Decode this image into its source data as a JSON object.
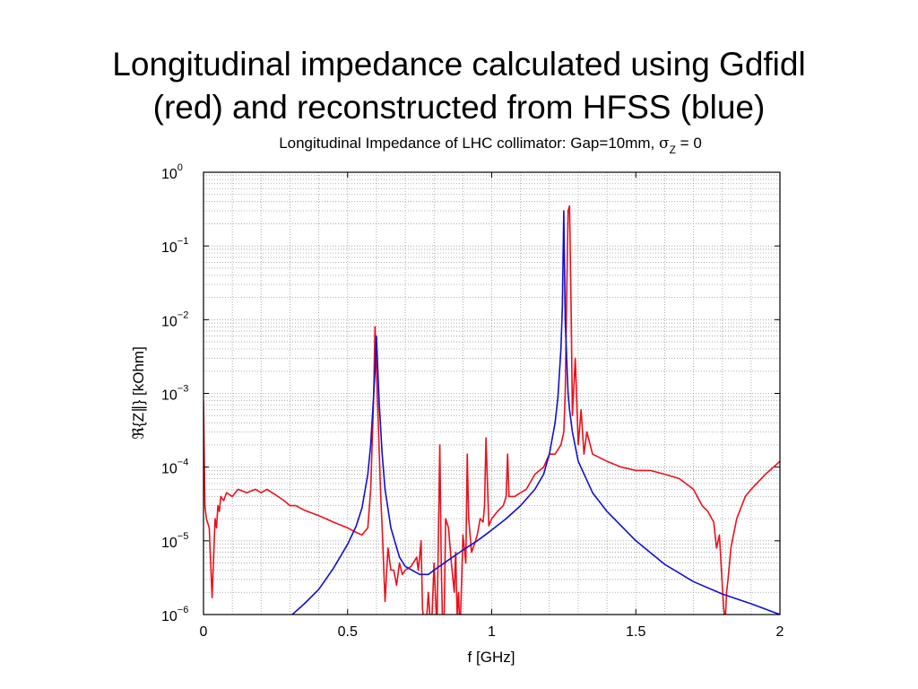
{
  "slide": {
    "title_line1": "Longitudinal impedance calculated using Gdfidl",
    "title_line2": "(red) and reconstructed from HFSS (blue)"
  },
  "chart_data": {
    "type": "line",
    "title": "Longitudinal Impedance of LHC collimator: Gap=10mm, σZ = 0",
    "title_main": "Longitudinal Impedance of LHC collimator: Gap=10mm, ",
    "title_sigma": "σ",
    "title_sub": "Z",
    "title_tail": " = 0",
    "xlabel": "f [GHz]",
    "ylabel": "ℜ{Z∥} [kOhm]",
    "xlim": [
      0,
      2
    ],
    "ylim_exponents": [
      -6,
      0
    ],
    "yscale": "log",
    "grid": true,
    "x_ticks": [
      {
        "value": 0,
        "label": "0"
      },
      {
        "value": 0.5,
        "label": "0.5"
      },
      {
        "value": 1,
        "label": "1"
      },
      {
        "value": 1.5,
        "label": "1.5"
      },
      {
        "value": 2,
        "label": "2"
      }
    ],
    "y_ticks": [
      {
        "exp": 0,
        "base": "10",
        "sup": "0"
      },
      {
        "exp": -1,
        "base": "10",
        "sup": "−1"
      },
      {
        "exp": -2,
        "base": "10",
        "sup": "−2"
      },
      {
        "exp": -3,
        "base": "10",
        "sup": "−3"
      },
      {
        "exp": -4,
        "base": "10",
        "sup": "−4"
      },
      {
        "exp": -5,
        "base": "10",
        "sup": "−5"
      },
      {
        "exp": -6,
        "base": "10",
        "sup": "−6"
      }
    ],
    "series": [
      {
        "color": "#e8111b",
        "x": [
          0.0,
          0.005,
          0.01,
          0.02,
          0.03,
          0.04,
          0.045,
          0.05,
          0.055,
          0.06,
          0.07,
          0.08,
          0.1,
          0.12,
          0.15,
          0.18,
          0.2,
          0.22,
          0.25,
          0.28,
          0.3,
          0.32,
          0.35,
          0.4,
          0.45,
          0.5,
          0.53,
          0.55,
          0.57,
          0.58,
          0.59,
          0.595,
          0.6,
          0.605,
          0.61,
          0.615,
          0.62,
          0.63,
          0.64,
          0.65,
          0.66,
          0.67,
          0.68,
          0.69,
          0.7,
          0.72,
          0.74,
          0.745,
          0.75,
          0.755,
          0.76,
          0.77,
          0.78,
          0.79,
          0.8,
          0.81,
          0.82,
          0.825,
          0.83,
          0.835,
          0.84,
          0.85,
          0.86,
          0.87,
          0.875,
          0.88,
          0.885,
          0.89,
          0.9,
          0.91,
          0.915,
          0.92,
          0.93,
          0.94,
          0.95,
          0.96,
          0.97,
          0.975,
          0.98,
          0.99,
          1.0,
          1.02,
          1.04,
          1.05,
          1.055,
          1.06,
          1.08,
          1.1,
          1.12,
          1.15,
          1.18,
          1.2,
          1.22,
          1.24,
          1.25,
          1.255,
          1.26,
          1.265,
          1.27,
          1.275,
          1.28,
          1.29,
          1.3,
          1.31,
          1.32,
          1.33,
          1.35,
          1.4,
          1.45,
          1.5,
          1.55,
          1.6,
          1.65,
          1.7,
          1.73,
          1.75,
          1.77,
          1.78,
          1.79,
          1.8,
          1.805,
          1.81,
          1.815,
          1.82,
          1.83,
          1.85,
          1.88,
          1.9,
          1.95,
          2.0
        ],
        "y": [
          0.0008,
          3e-05,
          2e-05,
          1.5e-05,
          1.7e-06,
          2e-05,
          1.5e-05,
          3e-05,
          2.5e-05,
          4e-05,
          3.5e-05,
          4.5e-05,
          4e-05,
          5e-05,
          4.5e-05,
          5e-05,
          4.5e-05,
          5e-05,
          4.2e-05,
          3.5e-05,
          3e-05,
          3e-05,
          2.6e-05,
          2.2e-05,
          1.8e-05,
          1.5e-05,
          1.3e-05,
          1.2e-05,
          1.5e-05,
          5e-05,
          0.0008,
          0.008,
          0.002,
          0.0006,
          0.00015,
          4e-05,
          1.5e-05,
          1.5e-06,
          8e-06,
          4e-06,
          4e-06,
          2.5e-06,
          5e-06,
          3.5e-06,
          4e-06,
          4.5e-06,
          6e-06,
          4e-06,
          6e-06,
          1e-05,
          1.2e-06,
          5e-07,
          2e-06,
          5e-07,
          5e-06,
          6e-07,
          0.0002,
          5e-06,
          6e-07,
          1e-06,
          2e-05,
          1.5e-05,
          5e-06,
          2e-06,
          7e-06,
          1e-06,
          2e-06,
          5e-07,
          1.2e-05,
          5e-06,
          0.00015,
          2e-05,
          7e-06,
          9e-06,
          1.2e-05,
          2e-05,
          1.8e-05,
          3e-05,
          0.00025,
          1.6e-05,
          2e-05,
          2.5e-05,
          3e-05,
          4e-05,
          0.00015,
          4e-05,
          4e-05,
          4.5e-05,
          5e-05,
          8e-05,
          0.0001,
          0.00015,
          0.00015,
          0.0002,
          0.0003,
          0.001,
          0.02,
          0.3,
          0.35,
          0.02,
          0.0005,
          0.003,
          0.0002,
          0.0006,
          0.00015,
          0.0003,
          0.00015,
          0.00012,
          0.0001,
          9e-05,
          9e-05,
          8e-05,
          7e-05,
          5e-05,
          3e-05,
          2.5e-05,
          1.8e-05,
          8e-06,
          1.2e-05,
          2.5e-06,
          1.2e-06,
          8e-07,
          2e-06,
          3e-06,
          8e-06,
          2e-05,
          4e-05,
          5e-05,
          8e-05,
          0.00012
        ]
      },
      {
        "color": "#1010d0",
        "x": [
          0.28,
          0.35,
          0.4,
          0.45,
          0.5,
          0.53,
          0.55,
          0.57,
          0.58,
          0.59,
          0.595,
          0.6,
          0.605,
          0.61,
          0.62,
          0.63,
          0.65,
          0.68,
          0.7,
          0.75,
          0.78,
          0.8,
          0.85,
          0.9,
          0.95,
          1.0,
          1.05,
          1.1,
          1.15,
          1.18,
          1.2,
          1.22,
          1.23,
          1.24,
          1.245,
          1.25,
          1.255,
          1.26,
          1.265,
          1.27,
          1.28,
          1.3,
          1.35,
          1.4,
          1.5,
          1.6,
          1.7,
          1.8,
          1.9,
          2.0
        ],
        "y": [
          8e-07,
          1.4e-06,
          2.2e-06,
          4.2e-06,
          9e-06,
          1.6e-05,
          2.8e-05,
          8e-05,
          0.0002,
          0.0009,
          0.002,
          0.006,
          0.002,
          0.0007,
          0.00015,
          5e-05,
          1.5e-05,
          6e-06,
          4.5e-06,
          3.5e-06,
          3.5e-06,
          4e-06,
          5.5e-06,
          7.5e-06,
          1e-05,
          1.4e-05,
          2e-05,
          3e-05,
          5e-05,
          8e-05,
          0.00015,
          0.0004,
          0.0009,
          0.004,
          0.015,
          0.3,
          0.01,
          0.003,
          0.001,
          0.0006,
          0.0003,
          0.00012,
          4.5e-05,
          2.5e-05,
          1e-05,
          4.8e-06,
          2.8e-06,
          1.9e-06,
          1.4e-06,
          1e-06
        ]
      }
    ]
  }
}
